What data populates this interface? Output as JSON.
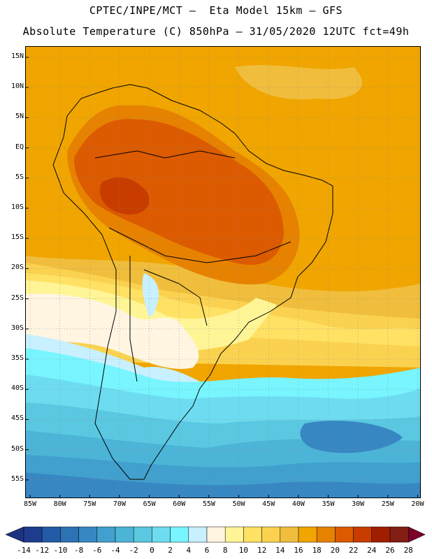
{
  "header": {
    "title_line1": "CPTEC/INPE/MCT –  Eta Model 15km – GFS",
    "title_line2": "Absolute Temperature (C) 850hPa – 31/05/2020 12UTC fct=49h"
  },
  "map": {
    "region": "South America",
    "variable": "Absolute Temperature (C) at 850hPa",
    "lat_labels": [
      "15N",
      "10N",
      "5N",
      "EQ",
      "5S",
      "10S",
      "15S",
      "20S",
      "25S",
      "30S",
      "35S",
      "40S",
      "45S",
      "50S",
      "55S"
    ],
    "lon_labels": [
      "85W",
      "80W",
      "75W",
      "70W",
      "65W",
      "60W",
      "55W",
      "50W",
      "45W",
      "40W",
      "35W",
      "30W",
      "25W",
      "20W"
    ]
  },
  "colorbar": {
    "labels": [
      "-14",
      "-12",
      "-10",
      "-8",
      "-6",
      "-4",
      "-2",
      "0",
      "2",
      "4",
      "6",
      "8",
      "10",
      "12",
      "14",
      "16",
      "18",
      "20",
      "22",
      "24",
      "26",
      "28"
    ],
    "colors": [
      "#1e3c8c",
      "#235aa5",
      "#2d73b4",
      "#3787c3",
      "#41a0cd",
      "#4bb4d7",
      "#5ac8e1",
      "#6edcf0",
      "#78f5ff",
      "#c8f0ff",
      "#fff5e1",
      "#fff596",
      "#ffe164",
      "#fad250",
      "#f0be3c",
      "#f0a500",
      "#e68200",
      "#dc5a00",
      "#c83c00",
      "#a01e00",
      "#821e14"
    ],
    "under_color": "#1e3282",
    "over_color": "#7d0028"
  }
}
